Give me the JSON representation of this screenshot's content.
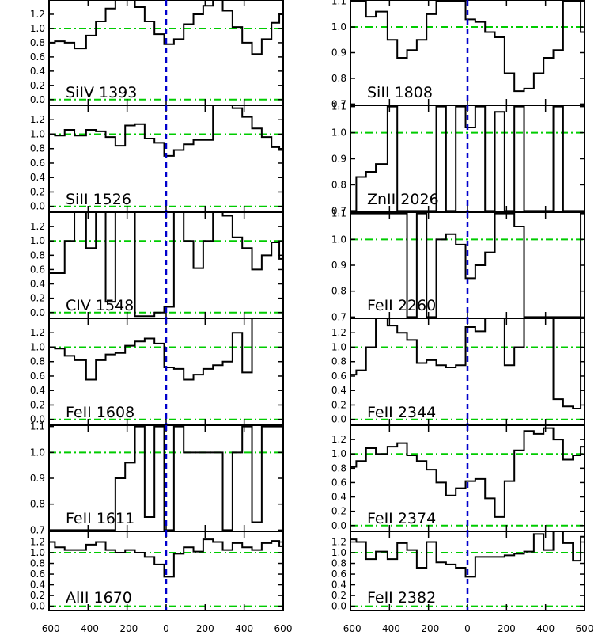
{
  "chart_data": {
    "type": "line",
    "x_range": [
      -600,
      600
    ],
    "x_ticks": [
      -600,
      -400,
      -200,
      0,
      200,
      400,
      600
    ],
    "x_tick_labels": [
      "-600",
      "-400",
      "-200",
      "0",
      "200",
      "400",
      "600"
    ],
    "reference_lines": {
      "velocity_zero": 0,
      "unity_flux": 1.0,
      "zero_flux": 0.0
    },
    "colors": {
      "spectrum": "#000000",
      "velocity_zero": "#0000cc",
      "reference": "#00cc00",
      "frame": "#000000"
    },
    "grid": false,
    "columns": [
      {
        "panels": [
          {
            "label": "SiIV 1393",
            "ylim": [
              -0.08,
              1.4
            ],
            "yticks": [
              0.0,
              0.2,
              0.4,
              0.6,
              0.8,
              1.0,
              1.2
            ],
            "ytick_labels": [
              "0.0",
              "0.2",
              "0.4",
              "0.6",
              "0.8",
              "1.0",
              "1.2"
            ],
            "velocity": [
              -600,
              -570,
              -520,
              -470,
              -410,
              -360,
              -310,
              -260,
              -210,
              -160,
              -110,
              -60,
              -10,
              40,
              90,
              140,
              190,
              240,
              290,
              340,
              390,
              440,
              490,
              540,
              580,
              600
            ],
            "flux": [
              0.8,
              0.82,
              0.8,
              0.72,
              0.9,
              1.1,
              1.28,
              1.42,
              1.42,
              1.3,
              1.1,
              0.92,
              0.78,
              0.85,
              1.06,
              1.2,
              1.32,
              1.42,
              1.25,
              1.02,
              0.8,
              0.64,
              0.85,
              1.08,
              1.2,
              1.25
            ]
          },
          {
            "label": "SiII 1526",
            "ylim": [
              -0.08,
              1.4
            ],
            "yticks": [
              0.0,
              0.2,
              0.4,
              0.6,
              0.8,
              1.0,
              1.2
            ],
            "ytick_labels": [
              "0.0",
              "0.2",
              "0.4",
              "0.6",
              "0.8",
              "1.0",
              "1.2"
            ],
            "velocity": [
              -600,
              -570,
              -520,
              -470,
              -410,
              -360,
              -310,
              -260,
              -210,
              -160,
              -110,
              -60,
              -10,
              40,
              90,
              140,
              190,
              240,
              290,
              340,
              390,
              440,
              490,
              540,
              580,
              600
            ],
            "flux": [
              1.0,
              0.98,
              1.06,
              0.98,
              1.06,
              1.04,
              0.96,
              0.84,
              1.12,
              1.14,
              0.94,
              0.88,
              0.7,
              0.78,
              0.86,
              0.92,
              0.92,
              1.4,
              1.4,
              1.36,
              1.24,
              1.08,
              0.96,
              0.82,
              0.78,
              0.76
            ]
          },
          {
            "label": "CIV 1548",
            "ylim": [
              -0.08,
              1.4
            ],
            "yticks": [
              0.0,
              0.2,
              0.4,
              0.6,
              0.8,
              1.0,
              1.2
            ],
            "ytick_labels": [
              "0.0",
              "0.2",
              "0.4",
              "0.6",
              "0.8",
              "1.0",
              "1.2"
            ],
            "velocity": [
              -600,
              -570,
              -520,
              -470,
              -410,
              -360,
              -310,
              -260,
              -210,
              -160,
              -110,
              -60,
              -10,
              40,
              90,
              140,
              190,
              240,
              290,
              340,
              390,
              440,
              490,
              540,
              580,
              600
            ],
            "flux": [
              0.55,
              0.55,
              1.0,
              1.4,
              0.9,
              1.4,
              0.15,
              1.4,
              1.4,
              -0.05,
              -0.05,
              0.0,
              0.08,
              1.4,
              1.0,
              0.62,
              1.0,
              1.4,
              1.35,
              1.05,
              0.9,
              0.6,
              0.8,
              0.98,
              0.75,
              0.75
            ]
          },
          {
            "label": "FeII 1608",
            "ylim": [
              -0.08,
              1.4
            ],
            "yticks": [
              0.0,
              0.2,
              0.4,
              0.6,
              0.8,
              1.0,
              1.2
            ],
            "ytick_labels": [
              "0.0",
              "0.2",
              "0.4",
              "0.6",
              "0.8",
              "1.0",
              "1.2"
            ],
            "velocity": [
              -600,
              -570,
              -520,
              -470,
              -410,
              -360,
              -310,
              -260,
              -210,
              -160,
              -110,
              -60,
              -10,
              40,
              90,
              140,
              190,
              240,
              290,
              340,
              390,
              440,
              490,
              540,
              580,
              600
            ],
            "flux": [
              1.0,
              0.98,
              0.88,
              0.82,
              0.55,
              0.82,
              0.9,
              0.92,
              1.02,
              1.08,
              1.12,
              1.05,
              0.72,
              0.7,
              0.55,
              0.62,
              0.7,
              0.75,
              0.8,
              1.2,
              0.65,
              1.4,
              1.4,
              1.4,
              1.4,
              1.4
            ]
          },
          {
            "label": "FeII 1611",
            "ylim": [
              0.695,
              1.105
            ],
            "yticks": [
              0.7,
              0.8,
              0.9,
              1.0,
              1.1
            ],
            "ytick_labels": [
              "0.7",
              "0.8",
              "0.9",
              "1.0",
              "1.1"
            ],
            "velocity": [
              -600,
              -570,
              -520,
              -470,
              -410,
              -360,
              -310,
              -260,
              -210,
              -160,
              -110,
              -60,
              -10,
              40,
              90,
              140,
              190,
              240,
              290,
              340,
              390,
              440,
              490,
              540,
              580,
              600
            ],
            "flux": [
              0.7,
              0.7,
              0.7,
              0.7,
              0.7,
              0.7,
              0.7,
              0.9,
              0.96,
              1.1,
              0.75,
              1.1,
              0.7,
              1.1,
              1.0,
              1.0,
              1.0,
              1.0,
              0.7,
              1.0,
              1.1,
              0.73,
              1.1,
              1.1,
              1.1,
              1.1
            ]
          },
          {
            "label": "AlII 1670",
            "ylim": [
              -0.08,
              1.4
            ],
            "yticks": [
              0.0,
              0.2,
              0.4,
              0.6,
              0.8,
              1.0,
              1.2
            ],
            "ytick_labels": [
              "0.0",
              "0.2",
              "0.4",
              "0.6",
              "0.8",
              "1.0",
              "1.2"
            ],
            "velocity": [
              -600,
              -570,
              -520,
              -470,
              -410,
              -360,
              -310,
              -260,
              -210,
              -160,
              -110,
              -60,
              -10,
              40,
              90,
              140,
              190,
              240,
              290,
              340,
              390,
              440,
              490,
              540,
              580,
              600
            ],
            "flux": [
              1.2,
              1.1,
              1.05,
              1.05,
              1.15,
              1.2,
              1.05,
              1.0,
              1.05,
              1.0,
              0.92,
              0.78,
              0.55,
              0.98,
              1.1,
              1.02,
              1.25,
              1.2,
              1.05,
              1.18,
              1.1,
              1.05,
              1.18,
              1.22,
              1.12,
              1.2
            ]
          }
        ]
      },
      {
        "panels": [
          {
            "label": "SiII 1808",
            "ylim": [
              0.695,
              1.105
            ],
            "yticks": [
              0.7,
              0.8,
              0.9,
              1.0,
              1.1
            ],
            "ytick_labels": [
              "0.7",
              "0.8",
              "0.9",
              "1.0",
              "1.1"
            ],
            "velocity": [
              -600,
              -570,
              -520,
              -470,
              -410,
              -360,
              -310,
              -260,
              -210,
              -160,
              -110,
              -60,
              -10,
              40,
              90,
              140,
              190,
              240,
              290,
              340,
              390,
              440,
              490,
              540,
              580,
              600
            ],
            "flux": [
              1.1,
              1.1,
              1.04,
              1.06,
              0.95,
              0.88,
              0.91,
              0.95,
              1.05,
              1.1,
              1.1,
              1.1,
              1.03,
              1.02,
              0.98,
              0.96,
              0.82,
              0.75,
              0.76,
              0.82,
              0.88,
              0.91,
              1.1,
              1.1,
              0.98,
              0.95
            ]
          },
          {
            "label": "ZnII 2026",
            "ylim": [
              0.695,
              1.105
            ],
            "yticks": [
              0.7,
              0.8,
              0.9,
              1.0,
              1.1
            ],
            "ytick_labels": [
              "0.7",
              "0.8",
              "0.9",
              "1.0",
              "1.1"
            ],
            "velocity": [
              -600,
              -570,
              -520,
              -470,
              -410,
              -360,
              -310,
              -260,
              -210,
              -160,
              -110,
              -60,
              -10,
              40,
              90,
              140,
              190,
              240,
              290,
              340,
              390,
              440,
              490,
              540,
              580,
              600
            ],
            "flux": [
              0.7,
              0.83,
              0.85,
              0.88,
              1.1,
              0.7,
              0.7,
              0.7,
              0.7,
              1.1,
              0.7,
              1.1,
              1.02,
              1.1,
              0.7,
              1.08,
              0.7,
              1.1,
              0.7,
              0.7,
              0.7,
              1.1,
              0.7,
              0.7,
              0.7,
              0.7
            ]
          },
          {
            "label": "FeII 2260",
            "ylim": [
              0.695,
              1.105
            ],
            "yticks": [
              0.7,
              0.8,
              0.9,
              1.0,
              1.1
            ],
            "ytick_labels": [
              "0.7",
              "0.8",
              "0.9",
              "1.0",
              "1.1"
            ],
            "velocity": [
              -600,
              -570,
              -520,
              -470,
              -410,
              -360,
              -310,
              -260,
              -210,
              -160,
              -110,
              -60,
              -10,
              40,
              90,
              140,
              190,
              240,
              290,
              340,
              390,
              440,
              490,
              540,
              580,
              600
            ],
            "flux": [
              1.1,
              1.1,
              1.1,
              1.1,
              1.1,
              1.1,
              0.7,
              1.1,
              0.7,
              1.0,
              1.02,
              0.98,
              0.85,
              0.9,
              0.95,
              1.1,
              1.1,
              1.05,
              0.7,
              0.7,
              0.7,
              0.7,
              0.7,
              0.7,
              1.1,
              0.7
            ]
          },
          {
            "label": "FeII 2344",
            "ylim": [
              -0.08,
              1.4
            ],
            "yticks": [
              0.0,
              0.2,
              0.4,
              0.6,
              0.8,
              1.0,
              1.2
            ],
            "ytick_labels": [
              "0.0",
              "0.2",
              "0.4",
              "0.6",
              "0.8",
              "1.0",
              "1.2"
            ],
            "velocity": [
              -600,
              -570,
              -520,
              -470,
              -410,
              -360,
              -310,
              -260,
              -210,
              -160,
              -110,
              -60,
              -10,
              40,
              90,
              140,
              190,
              240,
              290,
              340,
              390,
              440,
              490,
              540,
              580,
              600
            ],
            "flux": [
              0.62,
              0.68,
              1.0,
              1.4,
              1.3,
              1.2,
              1.1,
              0.78,
              0.82,
              0.75,
              0.72,
              0.75,
              1.28,
              1.22,
              1.4,
              1.4,
              0.75,
              1.0,
              1.4,
              1.4,
              1.4,
              0.28,
              0.18,
              0.15,
              1.4,
              1.4
            ]
          },
          {
            "label": "FeII 2374",
            "ylim": [
              -0.08,
              1.4
            ],
            "yticks": [
              0.0,
              0.2,
              0.4,
              0.6,
              0.8,
              1.0,
              1.2
            ],
            "ytick_labels": [
              "0.0",
              "0.2",
              "0.4",
              "0.6",
              "0.8",
              "1.0",
              "1.2"
            ],
            "velocity": [
              -600,
              -570,
              -520,
              -470,
              -410,
              -360,
              -310,
              -260,
              -210,
              -160,
              -110,
              -60,
              -10,
              40,
              90,
              140,
              190,
              240,
              290,
              340,
              390,
              440,
              490,
              540,
              580,
              600
            ],
            "flux": [
              0.82,
              0.9,
              1.08,
              1.0,
              1.1,
              1.15,
              0.98,
              0.9,
              0.78,
              0.6,
              0.42,
              0.52,
              0.62,
              0.65,
              0.38,
              0.12,
              0.62,
              1.05,
              1.32,
              1.28,
              1.36,
              1.2,
              0.92,
              0.98,
              1.1,
              1.12
            ]
          },
          {
            "label": "FeII 2382",
            "ylim": [
              -0.08,
              1.4
            ],
            "yticks": [
              0.0,
              0.2,
              0.4,
              0.6,
              0.8,
              1.0,
              1.2
            ],
            "ytick_labels": [
              "0.0",
              "0.2",
              "0.4",
              "0.6",
              "0.8",
              "1.0",
              "1.2"
            ],
            "velocity": [
              -600,
              -570,
              -520,
              -470,
              -410,
              -360,
              -310,
              -260,
              -210,
              -160,
              -110,
              -60,
              -10,
              40,
              90,
              140,
              190,
              240,
              290,
              340,
              390,
              440,
              490,
              540,
              580,
              600
            ],
            "flux": [
              1.25,
              1.2,
              0.88,
              1.02,
              0.88,
              1.18,
              1.05,
              0.72,
              1.2,
              0.82,
              0.78,
              0.72,
              0.55,
              0.92,
              0.92,
              0.92,
              0.95,
              0.98,
              1.02,
              1.35,
              1.05,
              1.4,
              1.18,
              0.85,
              1.3,
              1.3
            ]
          }
        ]
      }
    ]
  }
}
